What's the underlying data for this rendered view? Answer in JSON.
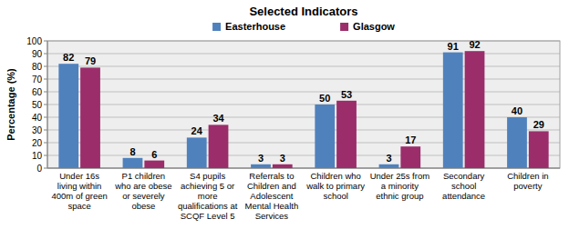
{
  "chart_data": {
    "type": "bar",
    "title": "Selected Indicators",
    "ylabel": "Percentage (%)",
    "categories": [
      "Under 16s living within 400m of green space",
      "P1 children who are obese or severely obese",
      "S4 pupils achieving 5 or more qualifications at SCQF Level 5",
      "Referrals to Children and Adolescent Mental Health Services",
      "Children who walk to primary school",
      "Under 25s from a minority ethnic group",
      "Secondary school attendance",
      "Children in poverty"
    ],
    "series": [
      {
        "name": "Easterhouse",
        "color": "#4f81bd",
        "values": [
          82,
          8,
          24,
          3,
          50,
          3,
          91,
          40
        ]
      },
      {
        "name": "Glasgow",
        "color": "#9b2d6b",
        "values": [
          79,
          6,
          34,
          3,
          53,
          17,
          92,
          29
        ]
      }
    ],
    "ylim": [
      0,
      100
    ],
    "yticks": [
      0,
      10,
      20,
      30,
      40,
      50,
      60,
      70,
      80,
      90,
      100
    ],
    "grid": true,
    "legend": "top",
    "data_labels": true
  }
}
